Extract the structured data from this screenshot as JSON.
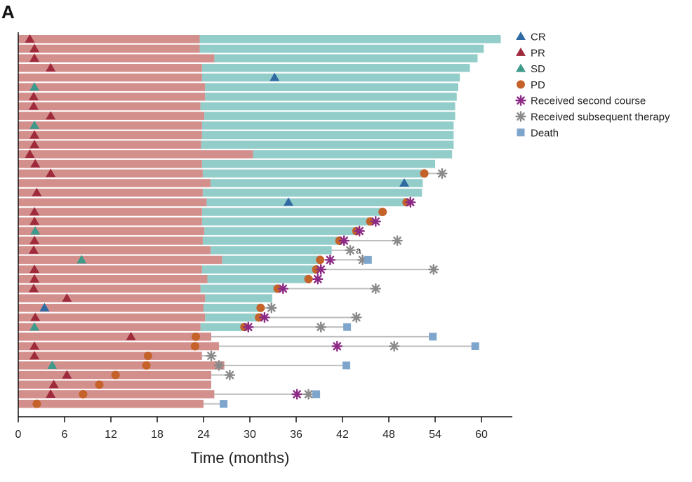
{
  "panel_label": "A",
  "chart_data": {
    "type": "swimmer",
    "title": "",
    "xlabel": "Time (months)",
    "ylabel": "",
    "xlim": [
      0,
      64
    ],
    "xticks": [
      0,
      6,
      12,
      18,
      24,
      30,
      36,
      42,
      48,
      54,
      60
    ],
    "colors": {
      "first_course": "#d38f8c",
      "follow_up": "#93cdca",
      "CR": "#2f6aa3",
      "PR": "#9e2a3c",
      "SD": "#3e9a8a",
      "PD": "#c4622a",
      "second_course": "#8c2a86",
      "subsequent_therapy": "#8a8a8a",
      "death": "#7ea6cc",
      "line": "#bdbdbd"
    },
    "legend": [
      {
        "key": "CR",
        "label": "CR",
        "marker": "triangle"
      },
      {
        "key": "PR",
        "label": "PR",
        "marker": "triangle"
      },
      {
        "key": "SD",
        "label": "SD",
        "marker": "triangle"
      },
      {
        "key": "PD",
        "label": "PD",
        "marker": "circle"
      },
      {
        "key": "second_course",
        "label": "Received second course",
        "marker": "asterisk"
      },
      {
        "key": "subsequent_therapy",
        "label": "Received subsequent therapy",
        "marker": "asterisk"
      },
      {
        "key": "death",
        "label": "Death",
        "marker": "square"
      }
    ],
    "patients": [
      {
        "first": 23.5,
        "follow": 62.5,
        "resp": "PR",
        "resp_t": 1.5
      },
      {
        "first": 23.5,
        "follow": 60.3,
        "resp": "PR",
        "resp_t": 2.1
      },
      {
        "first": 25.4,
        "follow": 59.5,
        "resp": "PR",
        "resp_t": 2.1
      },
      {
        "first": 23.8,
        "follow": 58.5,
        "resp": "PR",
        "resp_t": 4.2
      },
      {
        "first": 23.8,
        "follow": 57.2,
        "resp": "CR",
        "resp_t": 33.2
      },
      {
        "first": 24.2,
        "follow": 57.0,
        "resp": "SD",
        "resp_t": 2.1
      },
      {
        "first": 24.2,
        "follow": 56.8,
        "resp": "PR",
        "resp_t": 2.0
      },
      {
        "first": 23.6,
        "follow": 56.6,
        "resp": "PR",
        "resp_t": 2.0
      },
      {
        "first": 24.1,
        "follow": 56.6,
        "resp": "PR",
        "resp_t": 4.2
      },
      {
        "first": 23.8,
        "follow": 56.4,
        "resp": "SD",
        "resp_t": 2.1
      },
      {
        "first": 23.8,
        "follow": 56.4,
        "resp": "PR",
        "resp_t": 2.1
      },
      {
        "first": 23.7,
        "follow": 56.4,
        "resp": "PR",
        "resp_t": 2.1
      },
      {
        "first": 30.4,
        "follow": 56.2,
        "resp": "PR",
        "resp_t": 1.5
      },
      {
        "first": 23.8,
        "follow": 54.0,
        "resp": "PR",
        "resp_t": 2.2
      },
      {
        "first": 23.9,
        "follow": 52.6,
        "resp": "PR",
        "resp_t": 4.2,
        "pd": 52.6,
        "subseq": [
          54.9
        ]
      },
      {
        "first": 24.9,
        "follow": 52.4,
        "resp": "CR",
        "resp_t": 50.0
      },
      {
        "first": 23.9,
        "follow": 52.3,
        "resp": "PR",
        "resp_t": 2.4
      },
      {
        "first": 24.4,
        "follow": 50.5,
        "resp": "CR",
        "resp_t": 35.0,
        "pd": 50.3,
        "second": 50.8
      },
      {
        "first": 23.8,
        "follow": 47.2,
        "resp": "PR",
        "resp_t": 2.1,
        "pd": 47.2
      },
      {
        "first": 23.8,
        "follow": 45.6,
        "resp": "PR",
        "resp_t": 2.1,
        "pd": 45.6,
        "second": 46.3
      },
      {
        "first": 24.1,
        "follow": 43.8,
        "resp": "SD",
        "resp_t": 2.2,
        "pd": 43.8,
        "second": 44.2
      },
      {
        "first": 23.9,
        "follow": 41.6,
        "resp": "PR",
        "resp_t": 2.1,
        "pd": 41.6,
        "second": 42.2,
        "subseq": [
          49.1
        ]
      },
      {
        "first": 24.9,
        "follow": 40.6,
        "resp": "PR",
        "resp_t": 2.0,
        "subseq": [
          43.0
        ],
        "note": "a",
        "note_t": 44.2
      },
      {
        "first": 26.4,
        "follow": 39.1,
        "resp": "SD",
        "resp_t": 8.2,
        "pd": 39.1,
        "second": 40.4,
        "subseq": [
          44.6
        ],
        "death": 45.3
      },
      {
        "first": 23.8,
        "follow": 38.6,
        "resp": "PR",
        "resp_t": 2.1,
        "pd": 38.6,
        "second": 39.2,
        "subseq": [
          53.8
        ]
      },
      {
        "first": 24.5,
        "follow": 37.6,
        "resp": "PR",
        "resp_t": 2.1,
        "pd": 37.6,
        "second": 38.8
      },
      {
        "first": 23.6,
        "follow": 33.6,
        "resp": "PR",
        "resp_t": 2.0,
        "pd": 33.6,
        "second": 34.3,
        "subseq": [
          46.3
        ]
      },
      {
        "first": 24.2,
        "follow": 32.9,
        "resp": "PR",
        "resp_t": 6.3
      },
      {
        "first": 24.0,
        "follow": 31.4,
        "resp": "CR",
        "resp_t": 3.4,
        "pd": 31.4,
        "subseq": [
          32.8
        ]
      },
      {
        "first": 24.2,
        "follow": 31.2,
        "resp": "PR",
        "resp_t": 2.2,
        "pd": 31.2,
        "second": 31.9,
        "subseq": [
          43.8
        ]
      },
      {
        "first": 23.6,
        "follow": 29.3,
        "resp": "SD",
        "resp_t": 2.1,
        "pd": 29.3,
        "second": 29.8,
        "subseq": [
          39.2
        ],
        "death": 42.6
      },
      {
        "first": 25.0,
        "resp": "PR",
        "resp_t": 14.6,
        "pd": 23.0,
        "death": 53.7
      },
      {
        "first": 26.0,
        "resp": "PR",
        "resp_t": 2.1,
        "pd": 22.9,
        "second": 41.3,
        "subseq": [
          48.7
        ],
        "death": 59.2
      },
      {
        "first": 23.8,
        "resp": "PR",
        "resp_t": 2.1,
        "pd": 16.8,
        "subseq": [
          25.0
        ]
      },
      {
        "first": 26.7,
        "resp": "SD",
        "resp_t": 4.4,
        "pd": 16.6,
        "subseq": [
          26.0
        ],
        "death": 42.5
      },
      {
        "first": 25.0,
        "resp": "PR",
        "resp_t": 6.3,
        "pd": 12.6,
        "subseq": [
          27.4
        ]
      },
      {
        "first": 25.0,
        "resp": "PR",
        "resp_t": 4.6,
        "pd": 10.5
      },
      {
        "first": 25.4,
        "resp": "PR",
        "resp_t": 4.2,
        "pd": 8.4,
        "second": 36.1,
        "subseq": [
          37.6
        ],
        "death": 38.6
      },
      {
        "first": 24.0,
        "pd": 2.4,
        "death": 26.6
      }
    ]
  }
}
